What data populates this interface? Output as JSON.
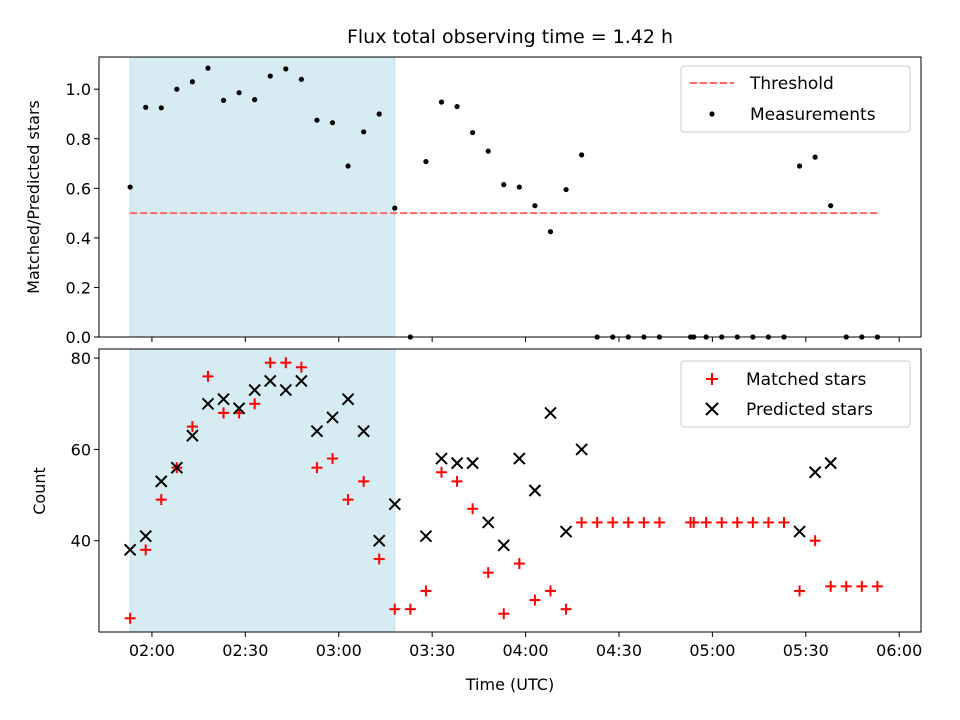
{
  "chart_data": [
    {
      "type": "scatter",
      "title": "Flux total observing time = 1.42 h",
      "ylabel": "Matched/Predicted stars",
      "xlabel": "",
      "ylim": [
        0,
        1.13
      ],
      "yticks": [
        0.0,
        0.2,
        0.4,
        0.6,
        0.8,
        1.0
      ],
      "yticklabels": [
        "0.0",
        "0.2",
        "0.4",
        "0.6",
        "0.8",
        "1.0"
      ],
      "xlim": [
        "01:43",
        "06:07"
      ],
      "xticks": [
        "02:00",
        "02:30",
        "03:00",
        "03:30",
        "04:00",
        "04:30",
        "05:00",
        "05:30",
        "06:00"
      ],
      "show_xticklabels": false,
      "shaded_span": {
        "start": "01:53",
        "end": "03:18",
        "color": "#add8e6"
      },
      "threshold": {
        "name": "Threshold",
        "value": 0.5,
        "x_start": "01:53",
        "x_end": "05:53",
        "color": "#ff6666",
        "style": "dashed"
      },
      "legend": {
        "placement": "top-right",
        "entries": [
          "Threshold",
          "Measurements"
        ]
      },
      "series": [
        {
          "name": "Measurements",
          "color": "#000000",
          "marker": "dot",
          "x": [
            "01:53",
            "01:58",
            "02:03",
            "02:08",
            "02:13",
            "02:18",
            "02:23",
            "02:28",
            "02:33",
            "02:38",
            "02:43",
            "02:48",
            "02:53",
            "02:58",
            "03:03",
            "03:08",
            "03:13",
            "03:18",
            "03:23",
            "03:28",
            "03:33",
            "03:38",
            "03:43",
            "03:48",
            "03:53",
            "03:58",
            "04:03",
            "04:08",
            "04:13",
            "04:18",
            "04:23",
            "04:28",
            "04:33",
            "04:38",
            "04:43",
            "04:53",
            "04:54",
            "04:58",
            "05:03",
            "05:08",
            "05:13",
            "05:18",
            "05:23",
            "05:28",
            "05:33",
            "05:38",
            "05:43",
            "05:48",
            "05:53"
          ],
          "y": [
            0.605,
            0.927,
            0.925,
            1.0,
            1.03,
            1.085,
            0.955,
            0.986,
            0.958,
            1.053,
            1.082,
            1.04,
            0.875,
            0.865,
            0.69,
            0.828,
            0.9,
            0.52,
            0.0,
            0.708,
            0.948,
            0.93,
            0.825,
            0.75,
            0.615,
            0.605,
            0.53,
            0.425,
            0.595,
            0.735,
            0.0,
            0.0,
            0.0,
            0.0,
            0.0,
            0.0,
            0.0,
            0.0,
            0.0,
            0.0,
            0.0,
            0.0,
            0.0,
            0.69,
            0.726,
            0.53,
            0.0,
            0.0,
            0.0
          ]
        }
      ]
    },
    {
      "type": "scatter",
      "title": "",
      "ylabel": "Count",
      "xlabel": "Time (UTC)",
      "ylim": [
        20,
        82
      ],
      "yticks": [
        40,
        60,
        80
      ],
      "yticklabels": [
        "40",
        "60",
        "80"
      ],
      "xlim": [
        "01:43",
        "06:07"
      ],
      "xticks": [
        "02:00",
        "02:30",
        "03:00",
        "03:30",
        "04:00",
        "04:30",
        "05:00",
        "05:30",
        "06:00"
      ],
      "xticklabels": [
        "02:00",
        "02:30",
        "03:00",
        "03:30",
        "04:00",
        "04:30",
        "05:00",
        "05:30",
        "06:00"
      ],
      "show_xticklabels": true,
      "shaded_span": {
        "start": "01:53",
        "end": "03:18",
        "color": "#add8e6"
      },
      "legend": {
        "placement": "top-right",
        "entries": [
          "Matched stars",
          "Predicted stars"
        ]
      },
      "series": [
        {
          "name": "Matched stars",
          "color": "#ff0000",
          "marker": "plus",
          "x": [
            "01:53",
            "01:58",
            "02:03",
            "02:08",
            "02:13",
            "02:18",
            "02:23",
            "02:28",
            "02:33",
            "02:38",
            "02:43",
            "02:48",
            "02:53",
            "02:58",
            "03:03",
            "03:08",
            "03:13",
            "03:18",
            "03:23",
            "03:28",
            "03:33",
            "03:38",
            "03:43",
            "03:48",
            "03:53",
            "03:58",
            "04:03",
            "04:08",
            "04:13",
            "04:18",
            "04:23",
            "04:28",
            "04:33",
            "04:38",
            "04:43",
            "04:53",
            "04:54",
            "04:58",
            "05:03",
            "05:08",
            "05:13",
            "05:18",
            "05:23",
            "05:28",
            "05:33",
            "05:38",
            "05:43",
            "05:48",
            "05:53"
          ],
          "y": [
            23,
            38,
            49,
            56,
            65,
            76,
            68,
            68,
            70,
            79,
            79,
            78,
            56,
            58,
            49,
            53,
            36,
            25,
            25,
            29,
            55,
            53,
            47,
            33,
            24,
            35,
            27,
            29,
            25,
            44,
            44,
            44,
            44,
            44,
            44,
            44,
            44,
            44,
            44,
            44,
            44,
            44,
            44,
            29,
            40,
            30,
            30,
            30,
            30
          ]
        },
        {
          "name": "Predicted stars",
          "color": "#000000",
          "marker": "x",
          "x": [
            "01:53",
            "01:58",
            "02:03",
            "02:08",
            "02:13",
            "02:18",
            "02:23",
            "02:28",
            "02:33",
            "02:38",
            "02:43",
            "02:48",
            "02:53",
            "02:58",
            "03:03",
            "03:08",
            "03:13",
            "03:18",
            "03:28",
            "03:33",
            "03:38",
            "03:43",
            "03:48",
            "03:53",
            "03:58",
            "04:03",
            "04:08",
            "04:13",
            "04:18",
            "05:28",
            "05:33",
            "05:38"
          ],
          "y": [
            38,
            41,
            53,
            56,
            63,
            70,
            71,
            69,
            73,
            75,
            73,
            75,
            64,
            67,
            71,
            64,
            40,
            48,
            41,
            58,
            57,
            57,
            44,
            39,
            58,
            51,
            68,
            42,
            60,
            42,
            55,
            57
          ]
        }
      ]
    }
  ]
}
